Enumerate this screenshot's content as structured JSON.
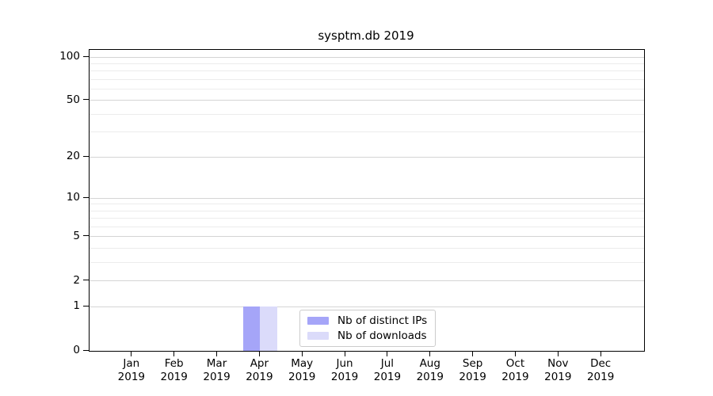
{
  "chart_data": {
    "type": "bar",
    "title": "sysptm.db 2019",
    "categories": [
      [
        "Jan",
        "2019"
      ],
      [
        "Feb",
        "2019"
      ],
      [
        "Mar",
        "2019"
      ],
      [
        "Apr",
        "2019"
      ],
      [
        "May",
        "2019"
      ],
      [
        "Jun",
        "2019"
      ],
      [
        "Jul",
        "2019"
      ],
      [
        "Aug",
        "2019"
      ],
      [
        "Sep",
        "2019"
      ],
      [
        "Oct",
        "2019"
      ],
      [
        "Nov",
        "2019"
      ],
      [
        "Dec",
        "2019"
      ]
    ],
    "series": [
      {
        "name": "Nb of distinct IPs",
        "color": "#a5a5f8",
        "values": [
          0,
          0,
          0,
          1,
          0,
          0,
          0,
          0,
          0,
          0,
          0,
          0
        ]
      },
      {
        "name": "Nb of downloads",
        "color": "#dbdbfa",
        "values": [
          0,
          0,
          0,
          1,
          0,
          0,
          0,
          0,
          0,
          0,
          0,
          0
        ]
      }
    ],
    "xlabel": "",
    "ylabel": "",
    "y_axis": {
      "scale": "log1p",
      "ticks": [
        0,
        1,
        2,
        5,
        10,
        20,
        50,
        100
      ],
      "minor_ticks": [
        3,
        4,
        6,
        7,
        8,
        9,
        30,
        40,
        60,
        70,
        80,
        90
      ],
      "ylim": [
        0,
        112
      ]
    },
    "grid": true,
    "legend_position": "inside-bottom-center"
  },
  "colors": {
    "grid_major": "#d4d4d4",
    "grid_minor": "#ececec",
    "spine": "#000000",
    "text": "#000000",
    "background": "#ffffff"
  }
}
